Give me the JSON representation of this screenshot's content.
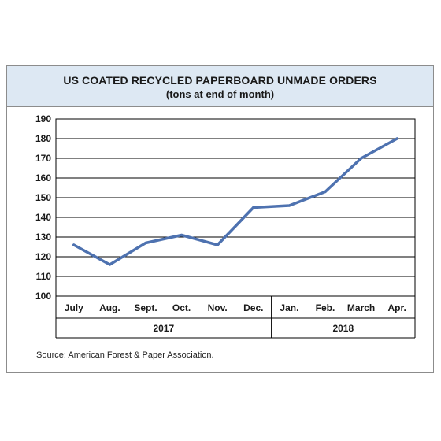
{
  "chart_data": {
    "type": "line",
    "title": "US COATED RECYCLED PAPERBOARD UNMADE ORDERS",
    "subtitle": "(tons at end of month)",
    "categories": [
      "July",
      "Aug.",
      "Sept.",
      "Oct.",
      "Nov.",
      "Dec.",
      "Jan.",
      "Feb.",
      "March",
      "Apr."
    ],
    "groups": [
      {
        "label": "2017",
        "start": 0,
        "end": 5
      },
      {
        "label": "2018",
        "start": 6,
        "end": 9
      }
    ],
    "series": [
      {
        "values": [
          126,
          116,
          127,
          131,
          126,
          145,
          146,
          153,
          170,
          180
        ],
        "color": "#4e72b0"
      }
    ],
    "ylim": [
      100,
      190
    ],
    "yticks": [
      100,
      110,
      120,
      130,
      140,
      150,
      160,
      170,
      180,
      190
    ],
    "grid": true,
    "xlabel": "",
    "ylabel": ""
  },
  "source": "Source: American Forest & Paper Association."
}
